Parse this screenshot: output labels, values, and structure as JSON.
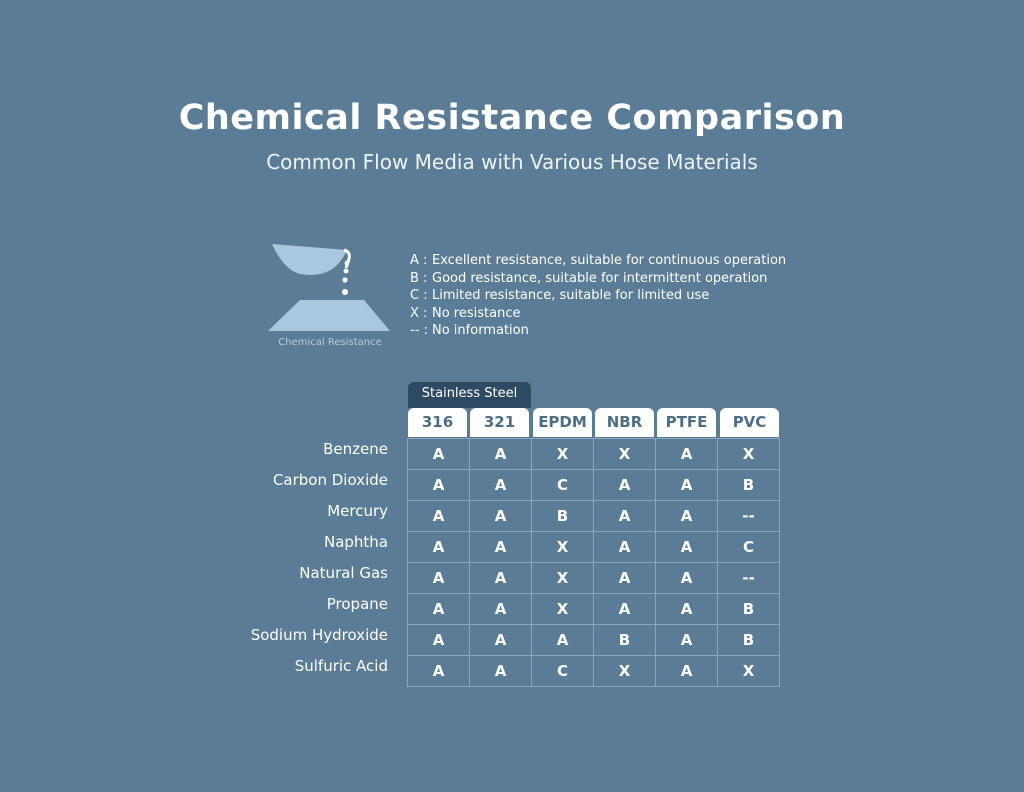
{
  "header": {
    "title": "Chemical Resistance Comparison",
    "subtitle": "Common Flow Media with Various Hose Materials"
  },
  "icon": {
    "name": "chemical-resistance-icon",
    "caption": "Chemical Resistance"
  },
  "legend": [
    {
      "code": "A :",
      "text": "Excellent resistance, suitable for continuous operation"
    },
    {
      "code": "B :",
      "text": "Good resistance, suitable for intermittent operation"
    },
    {
      "code": "C :",
      "text": "Limited resistance, suitable for limited use"
    },
    {
      "code": "X :",
      "text": "No resistance"
    },
    {
      "code": "-- :",
      "text": "No information"
    }
  ],
  "table": {
    "group_label": "Stainless Steel",
    "columns": [
      "316",
      "321",
      "EPDM",
      "NBR",
      "PTFE",
      "PVC"
    ],
    "rows": [
      {
        "label": "Benzene",
        "values": [
          "A",
          "A",
          "X",
          "X",
          "A",
          "X"
        ]
      },
      {
        "label": "Carbon Dioxide",
        "values": [
          "A",
          "A",
          "C",
          "A",
          "A",
          "B"
        ]
      },
      {
        "label": "Mercury",
        "values": [
          "A",
          "A",
          "B",
          "A",
          "A",
          "--"
        ]
      },
      {
        "label": "Naphtha",
        "values": [
          "A",
          "A",
          "X",
          "A",
          "A",
          "C"
        ]
      },
      {
        "label": "Natural Gas",
        "values": [
          "A",
          "A",
          "X",
          "A",
          "A",
          "--"
        ]
      },
      {
        "label": "Propane",
        "values": [
          "A",
          "A",
          "X",
          "A",
          "A",
          "B"
        ]
      },
      {
        "label": "Sodium Hydroxide",
        "values": [
          "A",
          "A",
          "A",
          "B",
          "A",
          "B"
        ]
      },
      {
        "label": "Sulfuric Acid",
        "values": [
          "A",
          "A",
          "C",
          "X",
          "A",
          "X"
        ]
      }
    ]
  },
  "colors": {
    "background": "#5a7c96",
    "header_tab": "#2e4a63",
    "icon_fill": "#a9c8df"
  }
}
